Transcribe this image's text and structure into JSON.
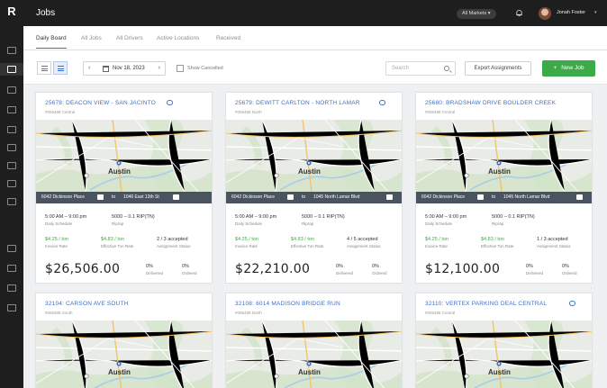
{
  "app": {
    "logo": "R"
  },
  "header": {
    "title": "Jobs",
    "filter_pill": "All Markets ▾",
    "user_name": "Jonah Foster",
    "user_chevron": "▾"
  },
  "tabs": [
    {
      "label": "Daily Board",
      "active": true
    },
    {
      "label": "All Jobs"
    },
    {
      "label": "All Drivers"
    },
    {
      "label": "Active Locations"
    },
    {
      "label": "Received"
    }
  ],
  "toolbar": {
    "date": "Nov 18, 2023",
    "show_cancelled": "Show Cancelled",
    "search_placeholder": "Search",
    "export_label": "Export Assignments",
    "new_job_label": "New Job"
  },
  "cards": [
    {
      "title": "25678: DEACON VIEW - SAN JACINTO",
      "subtitle": "#006488 Central",
      "from": "6042 Dickinson Place",
      "to_word": "to",
      "to": "1046 East 13th St",
      "time": "5:00 AM – 9:00 pm",
      "time_sub": "Daily Schedule",
      "material": "5000 – 0.1 RIP(TN)",
      "material_sub": "Riprap",
      "rate": "$4.25 / ton",
      "rate_sub": "Invoice Rate",
      "eff_rate": "$4.83 / ton",
      "eff_sub": "Effective Ton Rate",
      "assign": "2 / 3 accepted",
      "assign_sub": "Assignment Status",
      "price": "$26,506.00",
      "extra1": "0%",
      "extra1_sub": "Delivered",
      "extra2": "0%",
      "extra2_sub": "Ordered"
    },
    {
      "title": "25679: DEWITT CARLTON - NORTH LAMAR",
      "subtitle": "#006488 North",
      "from": "6042 Dickinson Place",
      "to_word": "to",
      "to": "1045 North Lamar Blvd",
      "time": "5:00 AM – 9:00 pm",
      "time_sub": "Daily Schedule",
      "material": "5000 – 0.1 RIP(TN)",
      "material_sub": "Riprap",
      "rate": "$4.25 / ton",
      "rate_sub": "Invoice Rate",
      "eff_rate": "$4.83 / ton",
      "eff_sub": "Effective Ton Rate",
      "assign": "4 / 5 accepted",
      "assign_sub": "Assignment Status",
      "price": "$22,210.00",
      "extra1": "0%",
      "extra1_sub": "Delivered",
      "extra2": "0%",
      "extra2_sub": "Ordered"
    },
    {
      "title": "25680: BRADSHAW DRIVE BOULDER CREEK",
      "subtitle": "#006488 Central",
      "from": "6042 Dickinson Place",
      "to_word": "to",
      "to": "1045 North Lamar Blvd",
      "time": "5:00 AM – 9:00 pm",
      "time_sub": "Daily Schedule",
      "material": "5000 – 0.1 RIP(TN)",
      "material_sub": "Riprap",
      "rate": "$4.25 / ton",
      "rate_sub": "Invoice Rate",
      "eff_rate": "$4.83 / ton",
      "eff_sub": "Effective Ton Rate",
      "assign": "1 / 3 accepted",
      "assign_sub": "Assignment Status",
      "price": "$12,100.00",
      "extra1": "0%",
      "extra1_sub": "Delivered",
      "extra2": "0%",
      "extra2_sub": "Ordered"
    },
    {
      "title": "32104: CARSON AVE SOUTH",
      "subtitle": "#006488 South"
    },
    {
      "title": "32108: 6014 MADISON BRIDGE RUN",
      "subtitle": "#006488 North"
    },
    {
      "title": "32110: VERTEX PARKING DEAL CENTRAL",
      "subtitle": "#006488 Central"
    }
  ],
  "map": {
    "city_label": "Austin",
    "accent_road": "#f4c46a",
    "water": "#a8cde8",
    "park": "#cfe3c4"
  }
}
